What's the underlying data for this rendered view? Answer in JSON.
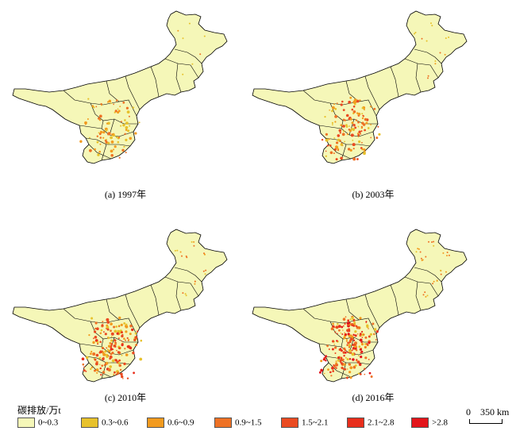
{
  "panels": [
    {
      "id": "a",
      "caption": "(a) 1997年",
      "intensity": 1
    },
    {
      "id": "b",
      "caption": "(b) 2003年",
      "intensity": 2
    },
    {
      "id": "c",
      "caption": "(c) 2010年",
      "intensity": 3
    },
    {
      "id": "d",
      "caption": "(d) 2016年",
      "intensity": 4
    }
  ],
  "legend": {
    "title": "碳排放/万t",
    "classes": [
      {
        "label": "0~0.3",
        "color": "#f5f7b8"
      },
      {
        "label": "0.3~0.6",
        "color": "#e7c12b"
      },
      {
        "label": "0.6~0.9",
        "color": "#f29a1e"
      },
      {
        "label": "0.9~1.5",
        "color": "#ee7124"
      },
      {
        "label": "1.5~2.1",
        "color": "#ea4a20"
      },
      {
        "label": "2.1~2.8",
        "color": "#e82e1c"
      },
      {
        "label": ">2.8",
        "color": "#e3141a"
      }
    ]
  },
  "scale_bar": {
    "zero": "0",
    "distance": "350 km"
  },
  "colors": {
    "land": "#f5f7b8",
    "border": "#000000"
  }
}
